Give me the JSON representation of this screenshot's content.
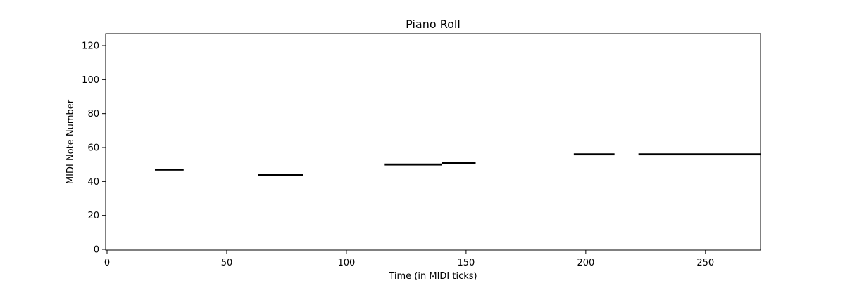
{
  "chart_data": {
    "type": "piano-roll",
    "title": "Piano Roll",
    "xlabel": "Time (in MIDI ticks)",
    "ylabel": "MIDI Note Number",
    "xlim": [
      0,
      273
    ],
    "ylim": [
      0,
      127
    ],
    "xticks": [
      0,
      50,
      100,
      150,
      200,
      250
    ],
    "yticks": [
      0,
      20,
      40,
      60,
      80,
      100,
      120
    ],
    "grid": false,
    "note_color": "#000000",
    "notes": [
      {
        "start": 20,
        "end": 32,
        "pitch": 47
      },
      {
        "start": 63,
        "end": 82,
        "pitch": 44
      },
      {
        "start": 116,
        "end": 140,
        "pitch": 50
      },
      {
        "start": 140,
        "end": 154,
        "pitch": 51
      },
      {
        "start": 195,
        "end": 212,
        "pitch": 56
      },
      {
        "start": 222,
        "end": 273,
        "pitch": 56
      }
    ]
  }
}
